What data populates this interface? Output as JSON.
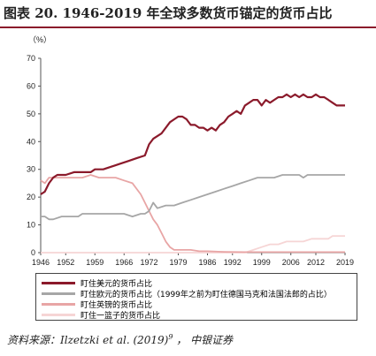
{
  "title": "图表 20. 1946-2019 年全球多数货币锚定的货币占比",
  "unit_label": "（%）",
  "source": {
    "prefix": "资料来源：",
    "cite": "Ilzetzki et al. (2019)",
    "superscript": "9",
    "suffix": " ，  中银证券"
  },
  "chart_data": {
    "type": "line",
    "title": "",
    "xlabel": "",
    "ylabel": "（%）",
    "xlim": [
      1946,
      2019
    ],
    "ylim": [
      0,
      70
    ],
    "x_ticks": [
      1946,
      1952,
      1959,
      1966,
      1972,
      1979,
      1986,
      1992,
      1999,
      2006,
      2012,
      2019
    ],
    "y_ticks": [
      0,
      10,
      20,
      30,
      40,
      50,
      60,
      70
    ],
    "grid": false,
    "legend_position": "bottom",
    "series": [
      {
        "name": "盯住美元的货币占比",
        "color": "#8b1a2b",
        "points": [
          [
            1946,
            21
          ],
          [
            1947,
            22
          ],
          [
            1948,
            25
          ],
          [
            1949,
            27
          ],
          [
            1950,
            28
          ],
          [
            1952,
            28
          ],
          [
            1954,
            29
          ],
          [
            1956,
            29
          ],
          [
            1958,
            29
          ],
          [
            1959,
            30
          ],
          [
            1961,
            30
          ],
          [
            1963,
            31
          ],
          [
            1965,
            32
          ],
          [
            1967,
            33
          ],
          [
            1969,
            34
          ],
          [
            1971,
            35
          ],
          [
            1972,
            39
          ],
          [
            1973,
            41
          ],
          [
            1975,
            43
          ],
          [
            1977,
            47
          ],
          [
            1978,
            48
          ],
          [
            1979,
            49
          ],
          [
            1980,
            49
          ],
          [
            1981,
            48
          ],
          [
            1982,
            46
          ],
          [
            1983,
            46
          ],
          [
            1984,
            45
          ],
          [
            1985,
            45
          ],
          [
            1986,
            44
          ],
          [
            1987,
            45
          ],
          [
            1988,
            44
          ],
          [
            1989,
            46
          ],
          [
            1990,
            47
          ],
          [
            1991,
            49
          ],
          [
            1992,
            50
          ],
          [
            1993,
            51
          ],
          [
            1994,
            50
          ],
          [
            1995,
            53
          ],
          [
            1996,
            54
          ],
          [
            1997,
            55
          ],
          [
            1998,
            55
          ],
          [
            1999,
            53
          ],
          [
            2000,
            55
          ],
          [
            2001,
            54
          ],
          [
            2002,
            55
          ],
          [
            2003,
            56
          ],
          [
            2004,
            56
          ],
          [
            2005,
            57
          ],
          [
            2006,
            56
          ],
          [
            2007,
            57
          ],
          [
            2008,
            56
          ],
          [
            2009,
            57
          ],
          [
            2010,
            56
          ],
          [
            2011,
            56
          ],
          [
            2012,
            57
          ],
          [
            2013,
            56
          ],
          [
            2014,
            56
          ],
          [
            2015,
            55
          ],
          [
            2016,
            54
          ],
          [
            2017,
            53
          ],
          [
            2018,
            53
          ],
          [
            2019,
            53
          ]
        ]
      },
      {
        "name": "盯住欧元的货币占比（1999年之前为盯住德国马克和法国法郎的占比）",
        "color": "#a6a6a6",
        "points": [
          [
            1946,
            13
          ],
          [
            1947,
            13
          ],
          [
            1948,
            12
          ],
          [
            1949,
            12
          ],
          [
            1951,
            13
          ],
          [
            1953,
            13
          ],
          [
            1955,
            13
          ],
          [
            1956,
            14
          ],
          [
            1958,
            14
          ],
          [
            1960,
            14
          ],
          [
            1962,
            14
          ],
          [
            1964,
            14
          ],
          [
            1966,
            14
          ],
          [
            1968,
            13
          ],
          [
            1970,
            14
          ],
          [
            1971,
            14
          ],
          [
            1972,
            15
          ],
          [
            1973,
            18
          ],
          [
            1974,
            16
          ],
          [
            1976,
            17
          ],
          [
            1978,
            17
          ],
          [
            1980,
            18
          ],
          [
            1982,
            19
          ],
          [
            1984,
            20
          ],
          [
            1986,
            21
          ],
          [
            1988,
            22
          ],
          [
            1990,
            23
          ],
          [
            1992,
            24
          ],
          [
            1994,
            25
          ],
          [
            1996,
            26
          ],
          [
            1998,
            27
          ],
          [
            2000,
            27
          ],
          [
            2002,
            27
          ],
          [
            2004,
            28
          ],
          [
            2006,
            28
          ],
          [
            2008,
            28
          ],
          [
            2009,
            27
          ],
          [
            2010,
            28
          ],
          [
            2012,
            28
          ],
          [
            2014,
            28
          ],
          [
            2016,
            28
          ],
          [
            2018,
            28
          ],
          [
            2019,
            28
          ]
        ]
      },
      {
        "name": "盯住英镑的货币占比",
        "color": "#e8a5a5",
        "points": [
          [
            1946,
            26
          ],
          [
            1947,
            25
          ],
          [
            1948,
            27
          ],
          [
            1950,
            27
          ],
          [
            1952,
            27
          ],
          [
            1954,
            27
          ],
          [
            1956,
            27
          ],
          [
            1958,
            28
          ],
          [
            1960,
            27
          ],
          [
            1962,
            27
          ],
          [
            1964,
            27
          ],
          [
            1966,
            26
          ],
          [
            1968,
            25
          ],
          [
            1970,
            21
          ],
          [
            1971,
            18
          ],
          [
            1972,
            15
          ],
          [
            1973,
            12
          ],
          [
            1974,
            10
          ],
          [
            1975,
            7
          ],
          [
            1976,
            4
          ],
          [
            1977,
            2
          ],
          [
            1978,
            1
          ],
          [
            1980,
            1
          ],
          [
            1982,
            1
          ],
          [
            1984,
            0.5
          ],
          [
            1986,
            0.5
          ],
          [
            1990,
            0.3
          ],
          [
            1995,
            0.2
          ],
          [
            2000,
            0.2
          ],
          [
            2005,
            0.2
          ],
          [
            2010,
            0.2
          ],
          [
            2019,
            0.2
          ]
        ]
      },
      {
        "name": "盯住一篮子的货币占比",
        "color": "#f6d5d5",
        "points": [
          [
            1946,
            0
          ],
          [
            1995,
            0
          ],
          [
            1997,
            1
          ],
          [
            1999,
            2
          ],
          [
            2001,
            3
          ],
          [
            2003,
            3
          ],
          [
            2005,
            4
          ],
          [
            2007,
            4
          ],
          [
            2009,
            4
          ],
          [
            2011,
            5
          ],
          [
            2013,
            5
          ],
          [
            2015,
            5
          ],
          [
            2016,
            6
          ],
          [
            2017,
            6
          ],
          [
            2019,
            6
          ]
        ]
      }
    ]
  }
}
